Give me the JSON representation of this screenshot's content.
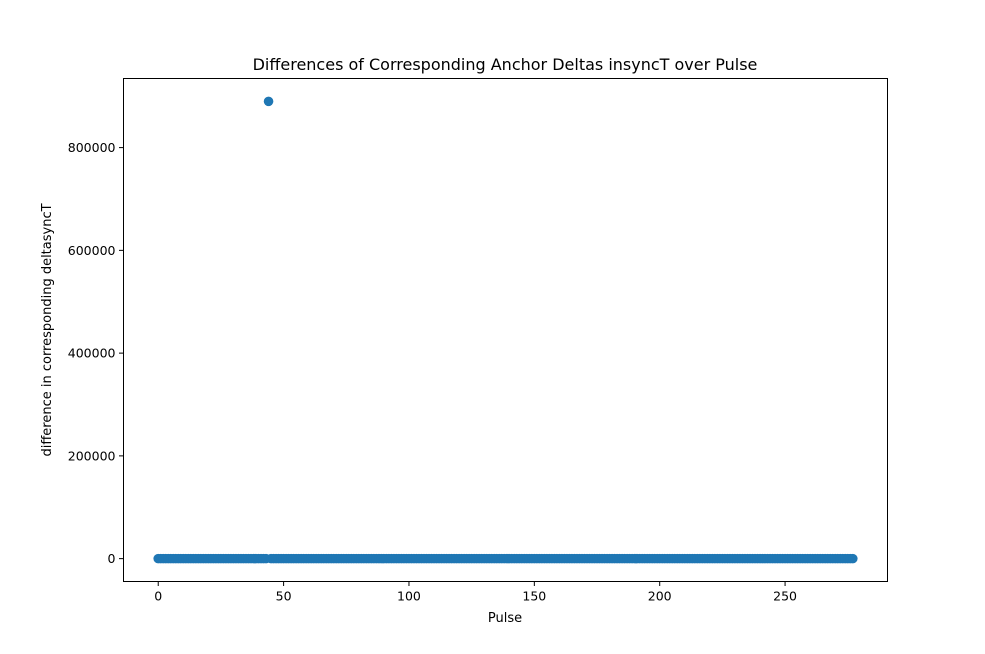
{
  "chart_data": {
    "type": "scatter",
    "title": "Differences of Corresponding Anchor Deltas insyncT over Pulse",
    "xlabel": "Pulse",
    "ylabel": "difference in corresponding deltasyncT",
    "xlim": [
      -13.85,
      290.85
    ],
    "ylim": [
      -44500,
      934500
    ],
    "xticks": [
      0,
      50,
      100,
      150,
      200,
      250
    ],
    "yticks": [
      0,
      200000,
      400000,
      600000,
      800000
    ],
    "grid": false,
    "marker_color": "#1f77b4",
    "series": [
      {
        "baseline_x_range": [
          0,
          277
        ],
        "baseline_x_step": 1,
        "baseline_y": 0,
        "outliers": [
          {
            "x": 44,
            "y": 890000
          }
        ]
      }
    ]
  }
}
